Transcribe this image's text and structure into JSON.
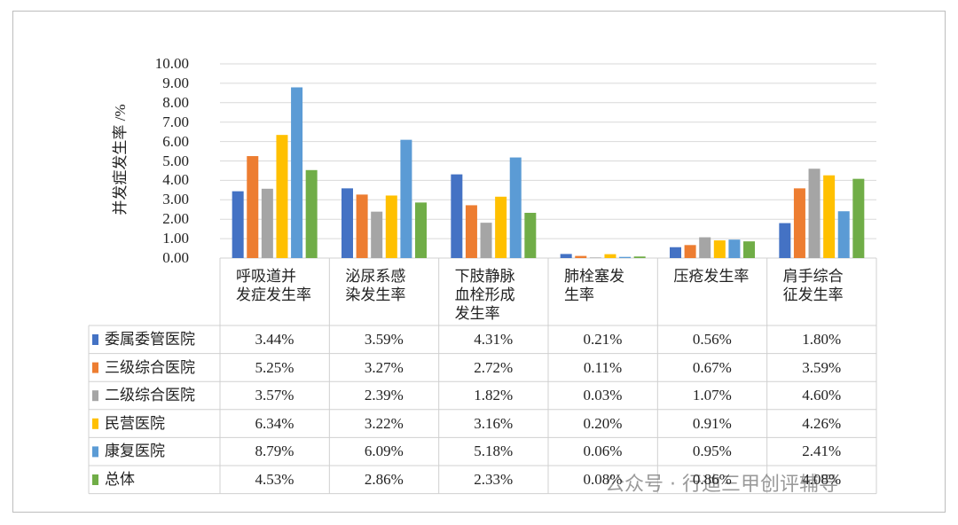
{
  "chart_data": {
    "type": "bar",
    "y_label": "并发症发生率 /%",
    "categories": [
      "呼吸道并\n发症发生率",
      "泌尿系感\n染发生率",
      "下肢静脉\n血栓形成\n发生率",
      "肺栓塞发\n生率",
      "压疮发生率",
      "肩手综合\n征发生率"
    ],
    "ylim": [
      0,
      10
    ],
    "yticks": [
      {
        "value": 0,
        "label": "0.00"
      },
      {
        "value": 1,
        "label": "1.00"
      },
      {
        "value": 2,
        "label": "2.00"
      },
      {
        "value": 3,
        "label": "3.00"
      },
      {
        "value": 4,
        "label": "4.00"
      },
      {
        "value": 5,
        "label": "5.00"
      },
      {
        "value": 6,
        "label": "6.00"
      },
      {
        "value": 7,
        "label": "7.00"
      },
      {
        "value": 8,
        "label": "8.00"
      },
      {
        "value": 9,
        "label": "9.00"
      },
      {
        "value": 10,
        "label": "10.00"
      }
    ],
    "grid": true,
    "series": [
      {
        "name": "委属委管医院",
        "color": "#4472c4",
        "values": [
          3.44,
          3.59,
          4.31,
          0.21,
          0.56,
          1.8
        ],
        "value_labels": [
          "3.44%",
          "3.59%",
          "4.31%",
          "0.21%",
          "0.56%",
          "1.80%"
        ]
      },
      {
        "name": "三级综合医院",
        "color": "#ed7d31",
        "values": [
          5.25,
          3.27,
          2.72,
          0.11,
          0.67,
          3.59
        ],
        "value_labels": [
          "5.25%",
          "3.27%",
          "2.72%",
          "0.11%",
          "0.67%",
          "3.59%"
        ]
      },
      {
        "name": "二级综合医院",
        "color": "#a5a5a5",
        "values": [
          3.57,
          2.39,
          1.82,
          0.03,
          1.07,
          4.6
        ],
        "value_labels": [
          "3.57%",
          "2.39%",
          "1.82%",
          "0.03%",
          "1.07%",
          "4.60%"
        ]
      },
      {
        "name": "民营医院",
        "color": "#ffc000",
        "values": [
          6.34,
          3.22,
          3.16,
          0.2,
          0.91,
          4.26
        ],
        "value_labels": [
          "6.34%",
          "3.22%",
          "3.16%",
          "0.20%",
          "0.91%",
          "4.26%"
        ]
      },
      {
        "name": "康复医院",
        "color": "#5b9bd5",
        "values": [
          8.79,
          6.09,
          5.18,
          0.06,
          0.95,
          2.41
        ],
        "value_labels": [
          "8.79%",
          "6.09%",
          "5.18%",
          "0.06%",
          "0.95%",
          "2.41%"
        ]
      },
      {
        "name": "总体",
        "color": "#70ad47",
        "values": [
          4.53,
          2.86,
          2.33,
          0.08,
          0.86,
          4.08
        ],
        "value_labels": [
          "4.53%",
          "2.86%",
          "2.33%",
          "0.08%",
          "0.86%",
          "4.08%"
        ]
      }
    ],
    "watermark": "公众号 · 行迪三甲创评辅导"
  }
}
